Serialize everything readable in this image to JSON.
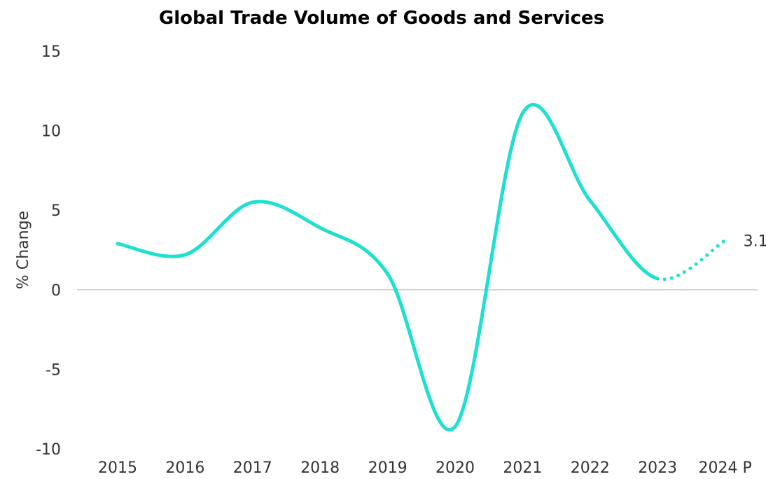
{
  "chart_data": {
    "type": "line",
    "title": "Global Trade Volume of Goods and Services",
    "xlabel": "",
    "ylabel": "% Change",
    "categories": [
      "2015",
      "2016",
      "2017",
      "2018",
      "2019",
      "2020",
      "2021",
      "2022",
      "2023",
      "2024 P"
    ],
    "series": [
      {
        "values": [
          2.9,
          2.2,
          5.5,
          3.9,
          1.0,
          -8.6,
          11.1,
          5.6,
          0.7,
          3.1
        ],
        "color": "#1ee0d0",
        "projected_from_index": 8
      }
    ],
    "ylim": [
      -10,
      15
    ],
    "yticks": [
      -10,
      -5,
      0,
      5,
      10,
      15
    ],
    "ytick_labels": [
      "-10",
      "-5",
      "0",
      "5",
      "10",
      "15"
    ],
    "grid": "zero-line only",
    "data_labels": [
      {
        "category": "2024 P",
        "text": "3.1"
      }
    ],
    "colors": {
      "line": "#1ee0d0",
      "zero_line": "#cccccc",
      "text": "#333333",
      "title": "#000000"
    }
  }
}
